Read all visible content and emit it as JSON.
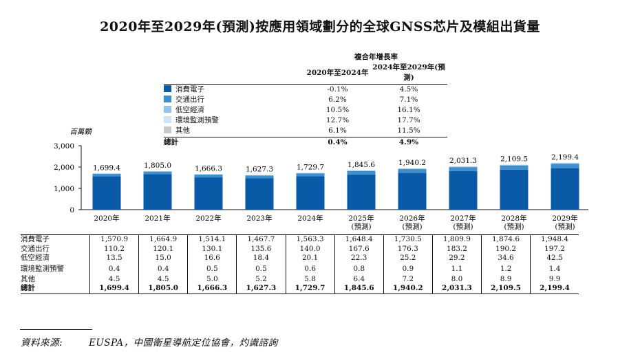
{
  "title": "2020年至2029年(預測)按應用領域劃分的全球GNSS芯片及模組出貨量",
  "cagr": {
    "header": "複合年增長率",
    "col1": "2020年至2024年",
    "col2": "2024年至2029年(預測)",
    "rows": [
      {
        "label": "消費電子",
        "v1": "-0.1%",
        "v2": "4.5%",
        "color": "#0a5aa8"
      },
      {
        "label": "交通出行",
        "v1": "6.2%",
        "v2": "7.1%",
        "color": "#3f8fcf"
      },
      {
        "label": "低空經濟",
        "v1": "10.5%",
        "v2": "16.1%",
        "color": "#8fc5e6"
      },
      {
        "label": "環境監測預警",
        "v1": "12.7%",
        "v2": "17.7%",
        "color": "#cfe3f4"
      },
      {
        "label": "其他",
        "v1": "6.1%",
        "v2": "11.5%",
        "color": "#c8c8c8"
      }
    ],
    "total": {
      "label": "總計",
      "v1": "0.4%",
      "v2": "4.9%"
    }
  },
  "chart_data": {
    "type": "bar",
    "stacked": true,
    "ylabel": "百萬顆",
    "ylim": [
      0,
      3000
    ],
    "yticks": [
      "3,000",
      "2,000",
      "1,000",
      "0"
    ],
    "yticks_values": [
      3000,
      2000,
      1000,
      0
    ],
    "categories": [
      "2020年",
      "2021年",
      "2022年",
      "2023年",
      "2024年",
      "2025年",
      "2026年",
      "2027年",
      "2028年",
      "2029年"
    ],
    "category_sub": [
      "",
      "",
      "",
      "",
      "",
      "(預測)",
      "(預測)",
      "(預測)",
      "(預測)",
      "(預測)"
    ],
    "series": [
      {
        "name": "消費電子",
        "values": [
          1570.9,
          1664.9,
          1514.1,
          1467.7,
          1563.3,
          1648.4,
          1730.5,
          1809.9,
          1874.6,
          1948.4
        ]
      },
      {
        "name": "交通出行",
        "values": [
          110.2,
          120.1,
          130.1,
          135.6,
          140.0,
          167.6,
          176.3,
          183.2,
          190.2,
          197.2
        ]
      },
      {
        "name": "低空經濟",
        "values": [
          13.5,
          15.0,
          16.6,
          18.4,
          20.1,
          22.3,
          25.2,
          29.2,
          34.6,
          42.5
        ]
      },
      {
        "name": "環境監測預警",
        "values": [
          0.4,
          0.4,
          0.5,
          0.5,
          0.6,
          0.8,
          0.9,
          1.1,
          1.2,
          1.4
        ]
      },
      {
        "name": "其他",
        "values": [
          4.5,
          4.5,
          5.0,
          5.2,
          5.8,
          6.4,
          7.2,
          8.0,
          8.9,
          9.9
        ]
      }
    ],
    "totals": [
      1699.4,
      1805.0,
      1666.3,
      1627.3,
      1729.7,
      1845.6,
      1940.2,
      2031.3,
      2109.5,
      2199.4
    ],
    "total_labels": [
      "1,699.4",
      "1,805.0",
      "1,666.3",
      "1,627.3",
      "1,729.7",
      "1,845.6",
      "1,940.2",
      "2,031.3",
      "2,109.5",
      "2,199.4"
    ]
  },
  "data_table": {
    "rows": [
      {
        "label": "消費電子",
        "values": [
          "1,570.9",
          "1,664.9",
          "1,514.1",
          "1,467.7",
          "1,563.3",
          "1,648.4",
          "1,730.5",
          "1,809.9",
          "1,874.6",
          "1,948.4"
        ]
      },
      {
        "label": "交通出行",
        "values": [
          "110.2",
          "120.1",
          "130.1",
          "135.6",
          "140.0",
          "167.6",
          "176.3",
          "183.2",
          "190.2",
          "197.2"
        ]
      },
      {
        "label": "低空經濟",
        "values": [
          "13.5",
          "15.0",
          "16.6",
          "18.4",
          "20.1",
          "22.3",
          "25.2",
          "29.2",
          "34.6",
          "42.5"
        ]
      },
      {
        "label": "環境監測預警",
        "values": [
          "0.4",
          "0.4",
          "0.5",
          "0.5",
          "0.6",
          "0.8",
          "0.9",
          "1.1",
          "1.2",
          "1.4"
        ]
      },
      {
        "label": "其他",
        "values": [
          "4.5",
          "4.5",
          "5.0",
          "5.2",
          "5.8",
          "6.4",
          "7.2",
          "8.0",
          "8.9",
          "9.9"
        ]
      }
    ],
    "total": {
      "label": "總計",
      "values": [
        "1,699.4",
        "1,805.0",
        "1,666.3",
        "1,627.3",
        "1,729.7",
        "1,845.6",
        "1,940.2",
        "2,031.3",
        "2,109.5",
        "2,199.4"
      ]
    }
  },
  "source": {
    "label": "資料來源:",
    "text": "EUSPA，中國衛星導航定位協會，灼識諮詢"
  }
}
